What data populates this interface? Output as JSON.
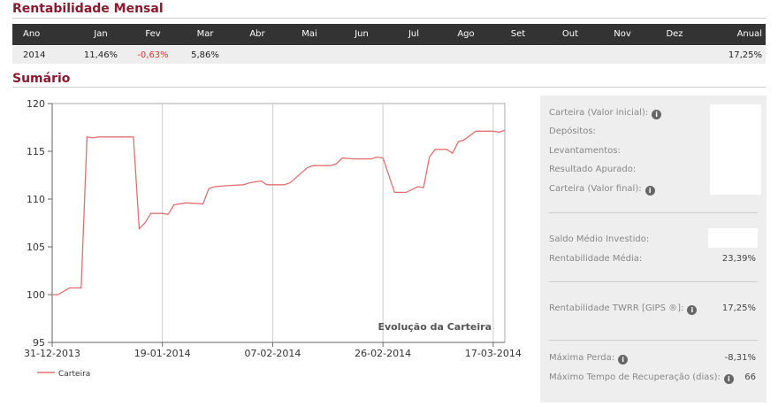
{
  "monthly": {
    "title": "Rentabilidade Mensal",
    "headers": [
      "Ano",
      "Jan",
      "Fev",
      "Mar",
      "Abr",
      "Mai",
      "Jun",
      "Jul",
      "Ago",
      "Set",
      "Out",
      "Nov",
      "Dez",
      "Anual"
    ],
    "row": {
      "0": "2014",
      "1": "11,46%",
      "2": "-0,63%",
      "3": "5,86%",
      "13": "17,25%"
    }
  },
  "summary": {
    "title": "Sumário",
    "items": [
      {
        "label": "Carteira (Valor inicial):",
        "info": true
      },
      {
        "label": "Depósitos:"
      },
      {
        "label": "Levantamentos:"
      },
      {
        "label": "Resultado Apurado:"
      },
      {
        "label": "Carteira (Valor final):",
        "info": true
      },
      {
        "label": "Saldo Médio Investido:"
      },
      {
        "label": "Rentabilidade Média:",
        "value": "23,39%"
      },
      {
        "label": "Rentabilidade TWRR [GIPS ®]:",
        "info": true,
        "value": "17,25%"
      },
      {
        "label": "Máxima Perda:",
        "info": true,
        "value": "-8,31%"
      },
      {
        "label": "Máximo Tempo de Recuperação (dias):",
        "info": true,
        "value": "66"
      }
    ]
  },
  "chart_data": {
    "type": "line",
    "annotation": "Evolução da Carteira",
    "grid": "x",
    "legend": "bottom-left",
    "x": [
      "31-12-2013",
      "01-01-2014",
      "03-01-2014",
      "05-01-2014",
      "06-01-2014",
      "07-01-2014",
      "08-01-2014",
      "14-01-2014",
      "15-01-2014",
      "16-01-2014",
      "17-01-2014",
      "19-01-2014",
      "20-01-2014",
      "21-01-2014",
      "23-01-2014",
      "26-01-2014",
      "27-01-2014",
      "28-01-2014",
      "30-01-2014",
      "02-02-2014",
      "03-02-2014",
      "05-02-2014",
      "06-02-2014",
      "09-02-2014",
      "10-02-2014",
      "13-02-2014",
      "14-02-2014",
      "17-02-2014",
      "18-02-2014",
      "19-02-2014",
      "21-02-2014",
      "24-02-2014",
      "25-02-2014",
      "26-02-2014",
      "28-02-2014",
      "02-03-2014",
      "04-03-2014",
      "05-03-2014",
      "06-03-2014",
      "07-03-2014",
      "09-03-2014",
      "10-03-2014",
      "11-03-2014",
      "12-03-2014",
      "14-03-2014",
      "17-03-2014",
      "18-03-2014",
      "19-03-2014"
    ],
    "series": [
      {
        "name": "Carteira",
        "color": "#e07070",
        "values": [
          100,
          100,
          100.7,
          100.7,
          116.5,
          116.4,
          116.5,
          116.5,
          106.9,
          107.5,
          108.5,
          108.5,
          108.4,
          109.4,
          109.6,
          109.5,
          111.1,
          111.3,
          111.4,
          111.5,
          111.7,
          111.9,
          111.5,
          111.5,
          111.7,
          113.3,
          113.5,
          113.5,
          113.7,
          114.3,
          114.2,
          114.2,
          114.4,
          114.3,
          110.7,
          110.7,
          111.3,
          111.2,
          114.4,
          115.2,
          115.2,
          114.8,
          116.0,
          116.2,
          117.1,
          117.1,
          117.0,
          117.2
        ]
      }
    ],
    "xlim": [
      "31-12-2013",
      "19-03-2014"
    ],
    "xticks": [
      "31-12-2013",
      "19-01-2014",
      "07-02-2014",
      "26-02-2014",
      "17-03-2014"
    ],
    "ylim": [
      95,
      120
    ],
    "yticks": [
      95,
      100,
      105,
      110,
      115,
      120
    ]
  }
}
